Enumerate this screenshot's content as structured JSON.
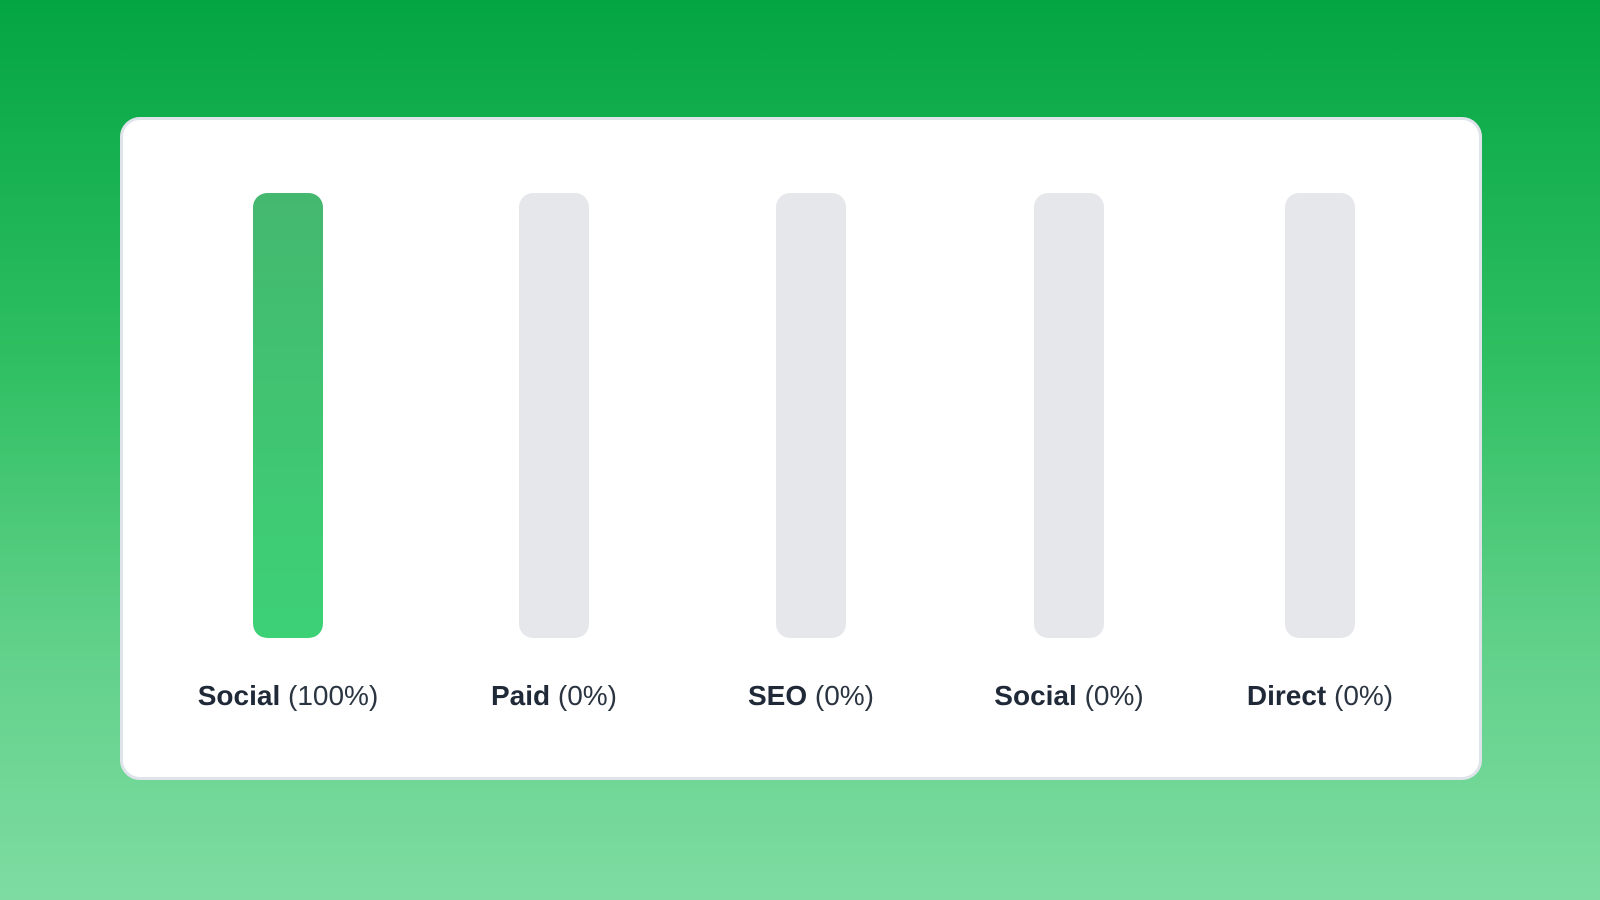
{
  "chart_data": {
    "type": "bar",
    "categories": [
      "Social",
      "Paid",
      "SEO",
      "Social",
      "Direct"
    ],
    "values": [
      100,
      0,
      0,
      0,
      0
    ],
    "value_labels": [
      "(100%)",
      "(0%)",
      "(0%)",
      "(0%)",
      "(0%)"
    ],
    "ylim": [
      0,
      100
    ],
    "grid": false,
    "colors": {
      "fill": "#3dd176",
      "track": "#e5e7eb",
      "background_top": "#03a542",
      "background_bottom": "#7edca2"
    }
  }
}
